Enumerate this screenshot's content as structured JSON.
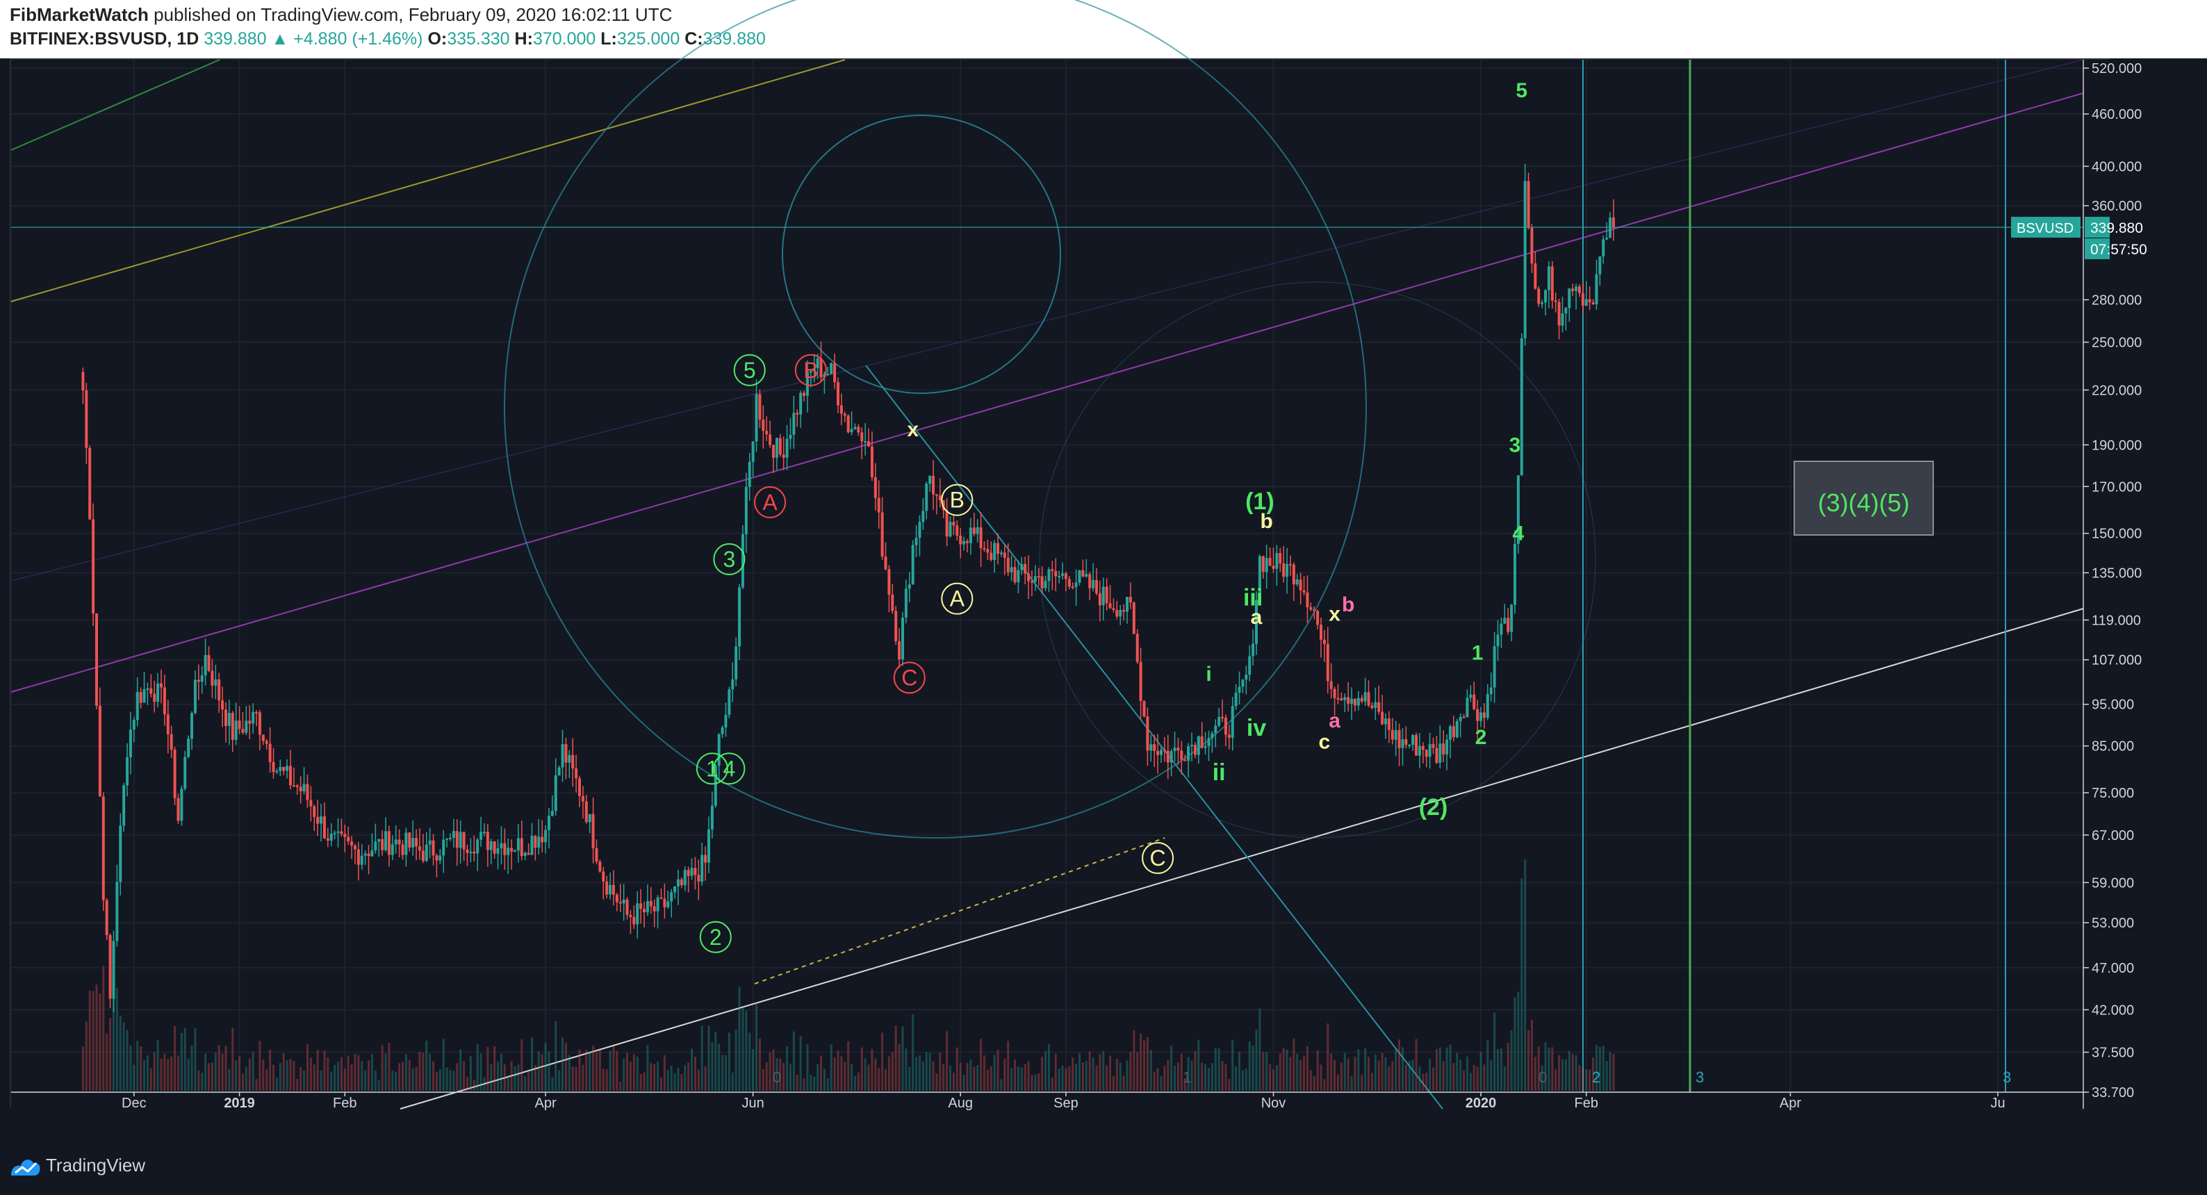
{
  "header": {
    "author": "FibMarketWatch",
    "published_text": "published on TradingView.com, February 09, 2020 16:02:11 UTC",
    "symbol": "BITFINEX:BSVUSD, 1D",
    "last": "339.880",
    "change": "▲ +4.880 (+1.46%)",
    "o_label": "O:",
    "o": "335.330",
    "h_label": "H:",
    "h": "370.000",
    "l_label": "L:",
    "l": "325.000",
    "c_label": "C:",
    "c": "339.880"
  },
  "footer": {
    "logo_text": "TradingView"
  },
  "colors": {
    "background": "#131722",
    "up": "#26a69a",
    "down": "#ef5350",
    "wave_green": "#4ee862",
    "wave_red": "#f04848",
    "wave_yellow": "#f7f59a",
    "wave_pink": "#ff6fa8",
    "fib_teal": "#2a8f9f",
    "grid": "#2a2e39"
  },
  "chart_data": {
    "type": "candlestick",
    "symbol": "BSVUSD",
    "interval": "1D",
    "y_scale": "log",
    "ylim": [
      33.7,
      520
    ],
    "price_axis_ticks": [
      "520.000",
      "460.000",
      "400.000",
      "360.000",
      "280.000",
      "250.000",
      "220.000",
      "190.000",
      "170.000",
      "150.000",
      "135.000",
      "119.000",
      "107.000",
      "95.000",
      "85.000",
      "75.000",
      "67.000",
      "59.000",
      "53.000",
      "47.000",
      "42.000",
      "37.500",
      "33.700"
    ],
    "time_axis_ticks": [
      "Dec",
      "2019",
      "Feb",
      "Apr",
      "Jun",
      "Aug",
      "Sep",
      "Nov",
      "2020",
      "Feb",
      "Apr",
      "Ju"
    ],
    "last_price_label": "BSVUSD",
    "last_price": "339.880",
    "countdown": "07:57:50",
    "close_path": [
      [
        "2018-11-16",
        220
      ],
      [
        "2018-11-18",
        160
      ],
      [
        "2018-11-20",
        95
      ],
      [
        "2018-11-22",
        58
      ],
      [
        "2018-11-24",
        43
      ],
      [
        "2018-11-26",
        60
      ],
      [
        "2018-11-29",
        85
      ],
      [
        "2018-12-02",
        97
      ],
      [
        "2018-12-06",
        100
      ],
      [
        "2018-12-10",
        95
      ],
      [
        "2018-12-14",
        70
      ],
      [
        "2018-12-18",
        95
      ],
      [
        "2018-12-22",
        108
      ],
      [
        "2018-12-26",
        97
      ],
      [
        "2018-12-30",
        88
      ],
      [
        "2019-01-06",
        92
      ],
      [
        "2019-01-12",
        80
      ],
      [
        "2019-01-20",
        75
      ],
      [
        "2019-01-28",
        66
      ],
      [
        "2019-02-05",
        64
      ],
      [
        "2019-02-15",
        66
      ],
      [
        "2019-02-25",
        64
      ],
      [
        "2019-03-05",
        66
      ],
      [
        "2019-03-15",
        66
      ],
      [
        "2019-03-25",
        65
      ],
      [
        "2019-04-01",
        68
      ],
      [
        "2019-04-06",
        84
      ],
      [
        "2019-04-12",
        74
      ],
      [
        "2019-04-18",
        60
      ],
      [
        "2019-04-25",
        54
      ],
      [
        "2019-05-05",
        55
      ],
      [
        "2019-05-12",
        59
      ],
      [
        "2019-05-18",
        62
      ],
      [
        "2019-05-22",
        86
      ],
      [
        "2019-05-26",
        100
      ],
      [
        "2019-05-29",
        150
      ],
      [
        "2019-06-02",
        215
      ],
      [
        "2019-06-05",
        195
      ],
      [
        "2019-06-09",
        185
      ],
      [
        "2019-06-14",
        210
      ],
      [
        "2019-06-19",
        235
      ],
      [
        "2019-06-24",
        230
      ],
      [
        "2019-06-29",
        200
      ],
      [
        "2019-07-04",
        198
      ],
      [
        "2019-07-09",
        145
      ],
      [
        "2019-07-14",
        110
      ],
      [
        "2019-07-18",
        145
      ],
      [
        "2019-07-23",
        175
      ],
      [
        "2019-07-28",
        150
      ],
      [
        "2019-08-04",
        150
      ],
      [
        "2019-08-11",
        142
      ],
      [
        "2019-08-18",
        134
      ],
      [
        "2019-08-25",
        133
      ],
      [
        "2019-09-02",
        134
      ],
      [
        "2019-09-08",
        130
      ],
      [
        "2019-09-14",
        125
      ],
      [
        "2019-09-20",
        122
      ],
      [
        "2019-09-25",
        86
      ],
      [
        "2019-10-01",
        83
      ],
      [
        "2019-10-07",
        85
      ],
      [
        "2019-10-13",
        88
      ],
      [
        "2019-10-19",
        90
      ],
      [
        "2019-10-25",
        105
      ],
      [
        "2019-10-28",
        140
      ],
      [
        "2019-11-02",
        138
      ],
      [
        "2019-11-08",
        135
      ],
      [
        "2019-11-13",
        122
      ],
      [
        "2019-11-18",
        100
      ],
      [
        "2019-11-22",
        98
      ],
      [
        "2019-11-27",
        97
      ],
      [
        "2019-12-02",
        92
      ],
      [
        "2019-12-08",
        86
      ],
      [
        "2019-12-14",
        85
      ],
      [
        "2019-12-19",
        83
      ],
      [
        "2019-12-23",
        88
      ],
      [
        "2019-12-28",
        97
      ],
      [
        "2020-01-02",
        92
      ],
      [
        "2020-01-06",
        115
      ],
      [
        "2020-01-10",
        120
      ],
      [
        "2020-01-12",
        170
      ],
      [
        "2020-01-14",
        390
      ],
      [
        "2020-01-16",
        300
      ],
      [
        "2020-01-18",
        270
      ],
      [
        "2020-01-21",
        300
      ],
      [
        "2020-01-24",
        260
      ],
      [
        "2020-01-28",
        295
      ],
      [
        "2020-02-01",
        280
      ],
      [
        "2020-02-04",
        290
      ],
      [
        "2020-02-06",
        335
      ],
      [
        "2020-02-09",
        339.88
      ]
    ],
    "annotations": [
      {
        "text": "5",
        "color": "green",
        "circled": true,
        "date": "2019-05-31",
        "price": 232
      },
      {
        "text": "B",
        "color": "red",
        "circled": true,
        "date": "2019-06-18",
        "price": 232
      },
      {
        "text": "A",
        "color": "red",
        "circled": true,
        "date": "2019-06-06",
        "price": 163
      },
      {
        "text": "C",
        "color": "red",
        "circled": true,
        "date": "2019-07-17",
        "price": 102
      },
      {
        "text": "3",
        "color": "green",
        "circled": true,
        "date": "2019-05-25",
        "price": 140
      },
      {
        "text": "1",
        "color": "green",
        "circled": true,
        "date": "2019-05-20",
        "price": 80
      },
      {
        "text": "4",
        "color": "green",
        "circled": true,
        "date": "2019-05-25",
        "price": 80
      },
      {
        "text": "2",
        "color": "green",
        "circled": true,
        "date": "2019-05-21",
        "price": 51
      },
      {
        "text": "x",
        "color": "yellow",
        "circled": false,
        "date": "2019-07-18",
        "price": 198
      },
      {
        "text": "B",
        "color": "yellow",
        "circled": true,
        "date": "2019-07-31",
        "price": 164
      },
      {
        "text": "A",
        "color": "yellow",
        "circled": true,
        "date": "2019-07-31",
        "price": 126
      },
      {
        "text": "C",
        "color": "yellow",
        "circled": true,
        "date": "2019-09-28",
        "price": 63
      },
      {
        "text": "(1)",
        "color": "green",
        "circled": false,
        "date": "2019-10-28",
        "price": 163
      },
      {
        "text": "b",
        "color": "yellow",
        "circled": false,
        "date": "2019-10-30",
        "price": 155
      },
      {
        "text": "iii",
        "color": "green",
        "circled": false,
        "date": "2019-10-26",
        "price": 126
      },
      {
        "text": "a",
        "color": "yellow",
        "circled": false,
        "date": "2019-10-27",
        "price": 120
      },
      {
        "text": "i",
        "color": "green",
        "circled": false,
        "date": "2019-10-13",
        "price": 103
      },
      {
        "text": "iv",
        "color": "green",
        "circled": false,
        "date": "2019-10-27",
        "price": 89
      },
      {
        "text": "ii",
        "color": "green",
        "circled": false,
        "date": "2019-10-16",
        "price": 79
      },
      {
        "text": "x",
        "color": "yellow",
        "circled": false,
        "date": "2019-11-19",
        "price": 121
      },
      {
        "text": "b",
        "color": "pink",
        "circled": false,
        "date": "2019-11-23",
        "price": 124
      },
      {
        "text": "a",
        "color": "pink",
        "circled": false,
        "date": "2019-11-19",
        "price": 91
      },
      {
        "text": "c",
        "color": "yellow",
        "circled": false,
        "date": "2019-11-16",
        "price": 86
      },
      {
        "text": "(2)",
        "color": "green",
        "circled": false,
        "date": "2019-12-18",
        "price": 72
      },
      {
        "text": "1",
        "color": "green",
        "circled": false,
        "date": "2019-12-31",
        "price": 109
      },
      {
        "text": "2",
        "color": "green",
        "circled": false,
        "date": "2020-01-01",
        "price": 87
      },
      {
        "text": "3",
        "color": "green",
        "circled": false,
        "date": "2020-01-11",
        "price": 190
      },
      {
        "text": "4",
        "color": "green",
        "circled": false,
        "date": "2020-01-12",
        "price": 150
      },
      {
        "text": "5",
        "color": "green",
        "circled": false,
        "date": "2020-01-13",
        "price": 490
      }
    ],
    "text_box": {
      "text": "(3)(4)(5)",
      "color": "green"
    },
    "time_cycle_labels": [
      "0",
      "1",
      "0",
      "2",
      "3",
      "3"
    ]
  }
}
